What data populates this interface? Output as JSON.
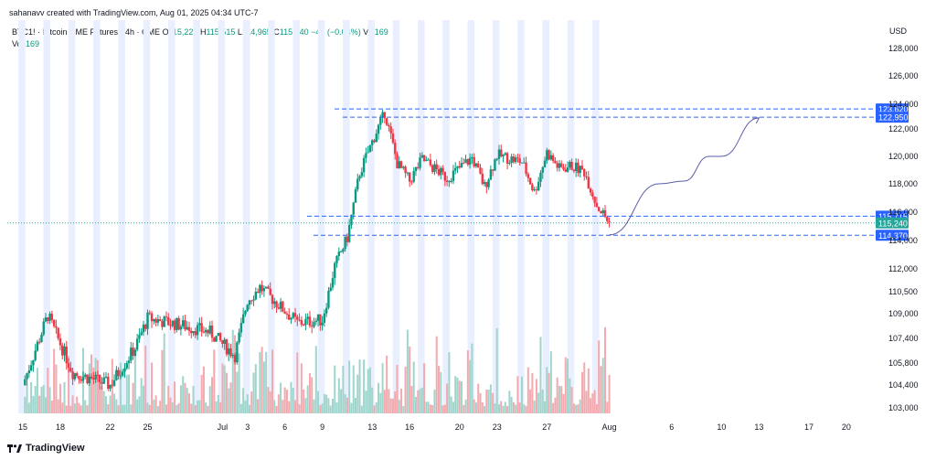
{
  "header": {
    "text": "sahanavv created with TradingView.com, Aug 01, 2025 04:34 UTC-7"
  },
  "legend": {
    "symbol": "BTC1! · Bitcoin CME Futures · 4h · CME",
    "o_label": "O",
    "o_value": "115,225",
    "h_label": "H",
    "h_value": "115,515",
    "l_label": "L",
    "l_value": "114,965",
    "c_label": "C",
    "c_value": "115,240",
    "change": "−45 (−0.04%)",
    "vol_label": "Vol",
    "vol_value": "169",
    "vol_row_label": "Vol",
    "vol_row_value": "169"
  },
  "footer": {
    "brand": "TradingView"
  },
  "colors": {
    "up": "#089981",
    "down": "#f23645",
    "up_vol": "#9fd5cc",
    "down_vol": "#f3a9ae",
    "band": "#e9efff",
    "line": "#2962ff",
    "arrow": "#5b5ea8"
  },
  "chart_data": {
    "type": "candlestick",
    "currency": "USD",
    "price_axis_ticks": [
      "128,000",
      "126,000",
      "124,000",
      "122,000",
      "120,000",
      "118,000",
      "116,000",
      "114,000",
      "112,000",
      "110,500",
      "109,000",
      "107,400",
      "105,800",
      "104,400",
      "103,000"
    ],
    "price_axis_values": [
      128000,
      126000,
      124000,
      122000,
      120000,
      118000,
      116000,
      114000,
      112000,
      110500,
      109000,
      107400,
      105800,
      104400,
      103000
    ],
    "x_axis_ticks": [
      "15",
      "18",
      "22",
      "25",
      "Jul",
      "3",
      "6",
      "9",
      "13",
      "16",
      "20",
      "23",
      "27",
      "Aug",
      "6",
      "10",
      "13",
      "17",
      "20"
    ],
    "x_axis_start": "Jun 15, 2025",
    "x_axis_end": "Aug 20, 2025",
    "last_price": 115240,
    "horizontal_levels": [
      {
        "label": "123,620",
        "value": 123620
      },
      {
        "label": "122,950",
        "value": 122950
      },
      {
        "label": "115,715",
        "value": 115715
      },
      {
        "label": "114,370",
        "value": 114370
      }
    ],
    "last_price_label": "115,240",
    "projection_path": [
      {
        "date": "Aug 01",
        "price": 114400
      },
      {
        "date": "Aug 05",
        "price": 118000
      },
      {
        "date": "Aug 07",
        "price": 118200
      },
      {
        "date": "Aug 09",
        "price": 120000
      },
      {
        "date": "Aug 10",
        "price": 120000
      },
      {
        "date": "Aug 13",
        "price": 122900
      }
    ],
    "trend_path": [
      {
        "date": "Jun 15",
        "price": 104400
      },
      {
        "date": "Jun 17",
        "price": 108900
      },
      {
        "date": "Jun 19",
        "price": 105200
      },
      {
        "date": "Jun 22",
        "price": 104400
      },
      {
        "date": "Jun 24",
        "price": 106800
      },
      {
        "date": "Jun 25",
        "price": 108700
      },
      {
        "date": "Jun 28",
        "price": 108200
      },
      {
        "date": "Jun 30",
        "price": 107800
      },
      {
        "date": "Jul 02",
        "price": 106300
      },
      {
        "date": "Jul 03",
        "price": 109900
      },
      {
        "date": "Jul 04",
        "price": 110800
      },
      {
        "date": "Jul 07",
        "price": 108400
      },
      {
        "date": "Jul 09",
        "price": 108600
      },
      {
        "date": "Jul 10",
        "price": 112200
      },
      {
        "date": "Jul 11",
        "price": 114200
      },
      {
        "date": "Jul 12",
        "price": 118800
      },
      {
        "date": "Jul 14",
        "price": 123300
      },
      {
        "date": "Jul 15",
        "price": 119500
      },
      {
        "date": "Jul 16",
        "price": 118200
      },
      {
        "date": "Jul 17",
        "price": 119800
      },
      {
        "date": "Jul 19",
        "price": 118400
      },
      {
        "date": "Jul 21",
        "price": 119900
      },
      {
        "date": "Jul 22",
        "price": 117800
      },
      {
        "date": "Jul 23",
        "price": 120100
      },
      {
        "date": "Jul 25",
        "price": 119600
      },
      {
        "date": "Jul 26",
        "price": 117400
      },
      {
        "date": "Jul 27",
        "price": 120300
      },
      {
        "date": "Jul 28",
        "price": 119100
      },
      {
        "date": "Jul 29",
        "price": 119300
      },
      {
        "date": "Jul 30",
        "price": 118900
      },
      {
        "date": "Jul 31",
        "price": 116500
      },
      {
        "date": "Aug 01",
        "price": 115240
      }
    ]
  }
}
